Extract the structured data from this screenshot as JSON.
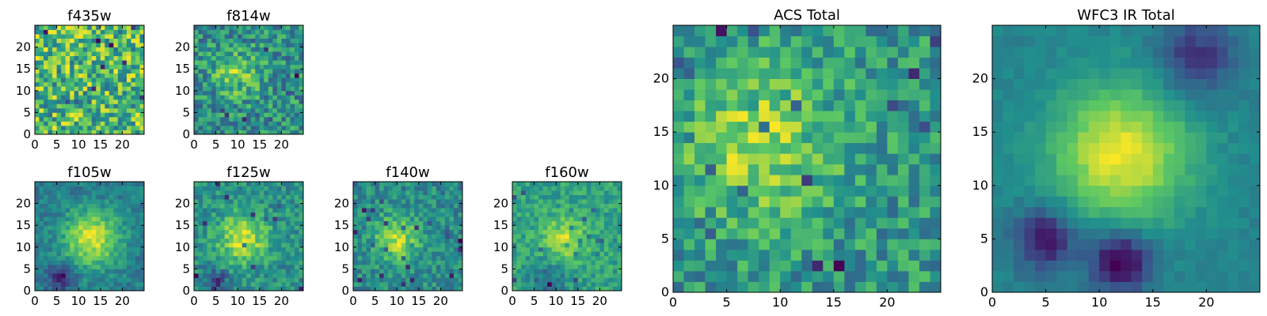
{
  "figure": {
    "colormap": [
      "#440154",
      "#3b528b",
      "#21908d",
      "#5dc863",
      "#fde725"
    ]
  },
  "chart_data": [
    {
      "type": "heatmap",
      "title": "f435w",
      "grid_size": 25,
      "xticks": [
        0,
        5,
        10,
        15,
        20
      ],
      "yticks": [
        0,
        5,
        10,
        15,
        20
      ],
      "xlim": [
        0,
        25
      ],
      "ylim": [
        0,
        25
      ],
      "seed": 11,
      "noise": 0.85,
      "blobs": []
    },
    {
      "type": "heatmap",
      "title": "f814w",
      "grid_size": 25,
      "xticks": [
        0,
        5,
        10,
        15,
        20
      ],
      "yticks": [
        0,
        5,
        10,
        15,
        20
      ],
      "xlim": [
        0,
        25
      ],
      "ylim": [
        0,
        25
      ],
      "seed": 23,
      "noise": 0.75,
      "blobs": [
        {
          "cx": 10,
          "cy": 14,
          "sigma": 3.5,
          "amp": 0.5
        }
      ]
    },
    {
      "type": "heatmap",
      "title": "f105w",
      "grid_size": 25,
      "xticks": [
        0,
        5,
        10,
        15,
        20
      ],
      "yticks": [
        0,
        5,
        10,
        15,
        20
      ],
      "xlim": [
        0,
        25
      ],
      "ylim": [
        0,
        25
      ],
      "seed": 37,
      "noise": 0.3,
      "blobs": [
        {
          "cx": 13,
          "cy": 12,
          "sigma": 4.5,
          "amp": 0.7
        },
        {
          "cx": 6,
          "cy": 3,
          "sigma": 2,
          "amp": -0.5
        }
      ]
    },
    {
      "type": "heatmap",
      "title": "f125w",
      "grid_size": 25,
      "xticks": [
        0,
        5,
        10,
        15,
        20
      ],
      "yticks": [
        0,
        5,
        10,
        15,
        20
      ],
      "xlim": [
        0,
        25
      ],
      "ylim": [
        0,
        25
      ],
      "seed": 41,
      "noise": 0.45,
      "blobs": [
        {
          "cx": 11,
          "cy": 12,
          "sigma": 4,
          "amp": 0.6
        },
        {
          "cx": 5,
          "cy": 2,
          "sigma": 2,
          "amp": -0.5
        }
      ]
    },
    {
      "type": "heatmap",
      "title": "f140w",
      "grid_size": 25,
      "xticks": [
        0,
        5,
        10,
        15,
        20
      ],
      "yticks": [
        0,
        5,
        10,
        15,
        20
      ],
      "xlim": [
        0,
        25
      ],
      "ylim": [
        0,
        25
      ],
      "seed": 53,
      "noise": 0.45,
      "blobs": [
        {
          "cx": 10,
          "cy": 12,
          "sigma": 3.5,
          "amp": 0.6
        }
      ]
    },
    {
      "type": "heatmap",
      "title": "f160w",
      "grid_size": 25,
      "xticks": [
        0,
        5,
        10,
        15,
        20
      ],
      "yticks": [
        0,
        5,
        10,
        15,
        20
      ],
      "xlim": [
        0,
        25
      ],
      "ylim": [
        0,
        25
      ],
      "seed": 67,
      "noise": 0.5,
      "blobs": [
        {
          "cx": 12,
          "cy": 12,
          "sigma": 3.5,
          "amp": 0.6
        },
        {
          "cx": 8,
          "cy": 2,
          "sigma": 3,
          "amp": -0.5
        }
      ]
    },
    {
      "type": "heatmap",
      "title": "ACS Total",
      "grid_size": 25,
      "xticks": [
        0,
        5,
        10,
        15,
        20
      ],
      "yticks": [
        0,
        5,
        10,
        15,
        20
      ],
      "xlim": [
        0,
        25
      ],
      "ylim": [
        0,
        25
      ],
      "seed": 79,
      "noise": 0.55,
      "blobs": [
        {
          "cx": 8,
          "cy": 14,
          "sigma": 5,
          "amp": 0.45
        }
      ]
    },
    {
      "type": "heatmap",
      "title": "WFC3 IR Total",
      "grid_size": 25,
      "xticks": [
        0,
        5,
        10,
        15,
        20
      ],
      "yticks": [
        0,
        5,
        10,
        15,
        20
      ],
      "xlim": [
        0,
        25
      ],
      "ylim": [
        0,
        25
      ],
      "seed": 97,
      "noise": 0.12,
      "blobs": [
        {
          "cx": 12,
          "cy": 13,
          "sigma": 4.5,
          "amp": 0.75
        },
        {
          "cx": 12,
          "cy": 3,
          "sigma": 2,
          "amp": -0.7
        },
        {
          "cx": 5,
          "cy": 5,
          "sigma": 2,
          "amp": -0.6
        },
        {
          "cx": 19,
          "cy": 22,
          "sigma": 2.5,
          "amp": -0.45
        }
      ]
    }
  ]
}
